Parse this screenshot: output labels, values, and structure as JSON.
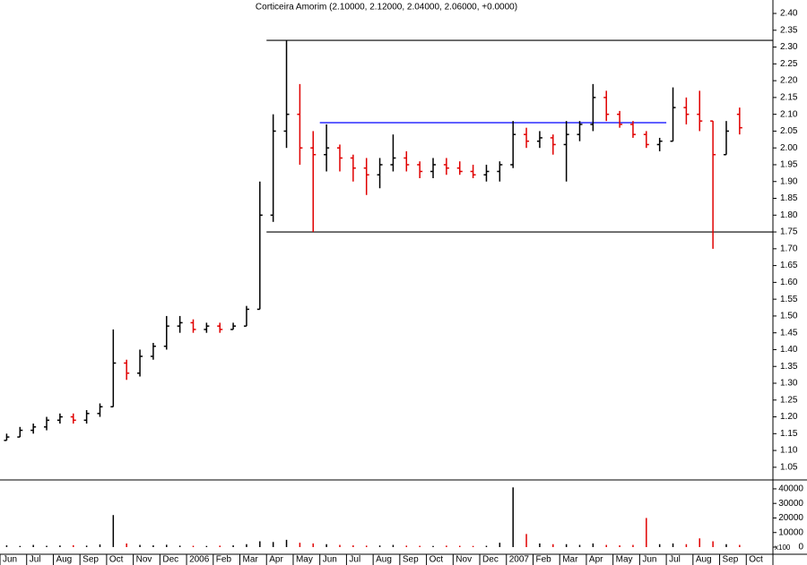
{
  "chart_data": {
    "type": "ohlc",
    "title": "Corticeira Amorim (2.10000, 2.12000, 2.04000, 2.06000, +0.0000)",
    "categories": [
      "Jun",
      null,
      "Jul",
      null,
      "Aug",
      null,
      "Sep",
      null,
      "Oct",
      null,
      "Nov",
      null,
      "Dec",
      null,
      "2006",
      null,
      "Feb",
      null,
      "Mar",
      null,
      "Apr",
      null,
      "May",
      null,
      "Jun",
      null,
      "Jul",
      null,
      "Aug",
      null,
      "Sep",
      null,
      "Oct",
      null,
      "Nov",
      null,
      "Dec",
      null,
      "2007",
      null,
      "Feb",
      null,
      "Mar",
      null,
      "Apr",
      null,
      "May",
      null,
      "Jun",
      null,
      "Jul",
      null,
      "Aug",
      null,
      "Sep",
      null,
      "Oct",
      null
    ],
    "open": [
      1.13,
      1.14,
      1.16,
      1.17,
      1.19,
      1.2,
      1.19,
      1.21,
      1.23,
      1.36,
      1.33,
      1.38,
      1.41,
      1.47,
      1.48,
      1.46,
      1.47,
      1.46,
      1.47,
      1.52,
      1.8,
      2.05,
      2.1,
      2.0,
      1.98,
      2.0,
      1.97,
      1.94,
      1.92,
      1.95,
      1.97,
      1.95,
      1.93,
      1.95,
      1.94,
      1.93,
      1.92,
      1.93,
      1.95,
      2.04,
      2.02,
      2.03,
      2.01,
      2.04,
      2.07,
      2.15,
      2.1,
      2.07,
      2.04,
      2.01,
      2.02,
      2.12,
      2.1,
      2.08,
      1.98,
      2.1,
      null,
      null
    ],
    "high": [
      1.15,
      1.17,
      1.18,
      1.2,
      1.21,
      1.21,
      1.22,
      1.24,
      1.46,
      1.37,
      1.4,
      1.42,
      1.5,
      1.5,
      1.49,
      1.48,
      1.48,
      1.48,
      1.53,
      1.9,
      2.1,
      2.32,
      2.19,
      2.05,
      2.07,
      2.01,
      1.98,
      1.97,
      1.97,
      2.04,
      1.99,
      1.96,
      1.97,
      1.97,
      1.96,
      1.95,
      1.95,
      1.96,
      2.08,
      2.06,
      2.05,
      2.04,
      2.08,
      2.08,
      2.19,
      2.17,
      2.11,
      2.08,
      2.05,
      2.03,
      2.18,
      2.15,
      2.17,
      2.08,
      2.08,
      2.12,
      null,
      null
    ],
    "low": [
      1.13,
      1.14,
      1.15,
      1.16,
      1.18,
      1.18,
      1.18,
      1.2,
      1.23,
      1.31,
      1.32,
      1.37,
      1.4,
      1.45,
      1.45,
      1.45,
      1.45,
      1.46,
      1.47,
      1.52,
      1.78,
      2.0,
      1.95,
      1.75,
      1.93,
      1.93,
      1.9,
      1.86,
      1.88,
      1.93,
      1.93,
      1.91,
      1.91,
      1.92,
      1.92,
      1.91,
      1.9,
      1.9,
      1.94,
      2.0,
      2.0,
      1.98,
      1.9,
      2.02,
      2.05,
      2.08,
      2.06,
      2.03,
      2.0,
      1.99,
      2.02,
      2.07,
      2.05,
      1.7,
      1.98,
      2.04,
      null,
      null
    ],
    "close": [
      1.14,
      1.16,
      1.17,
      1.19,
      1.2,
      1.19,
      1.21,
      1.23,
      1.36,
      1.33,
      1.38,
      1.41,
      1.47,
      1.48,
      1.46,
      1.47,
      1.46,
      1.47,
      1.52,
      1.8,
      2.05,
      2.1,
      2.0,
      1.98,
      2.0,
      1.97,
      1.94,
      1.92,
      1.95,
      1.97,
      1.95,
      1.93,
      1.95,
      1.94,
      1.93,
      1.92,
      1.93,
      1.95,
      2.04,
      2.02,
      2.03,
      2.01,
      2.04,
      2.07,
      2.15,
      2.1,
      2.07,
      2.04,
      2.01,
      2.02,
      2.12,
      2.1,
      2.08,
      1.98,
      2.05,
      2.06,
      null,
      null
    ],
    "volume": [
      1200,
      800,
      1500,
      900,
      1100,
      1300,
      1000,
      1800,
      22000,
      2500,
      1500,
      1200,
      1600,
      1000,
      900,
      800,
      1000,
      1200,
      2000,
      4000,
      3500,
      5000,
      3000,
      2500,
      2000,
      1500,
      1200,
      1000,
      1100,
      1500,
      1000,
      900,
      800,
      1000,
      900,
      800,
      900,
      3000,
      41000,
      9000,
      2500,
      2000,
      2000,
      1500,
      2500,
      1500,
      1200,
      1500,
      20000,
      2000,
      2500,
      2000,
      6000,
      4000,
      2000,
      1500,
      null,
      null
    ],
    "up_color": "#000000",
    "down_color": "#e00000",
    "ylim": [
      1.015,
      2.44
    ],
    "yticks": [
      {
        "value": 1.05,
        "label": "1.05"
      },
      {
        "value": 1.1,
        "label": "1.10"
      },
      {
        "value": 1.15,
        "label": "1.15"
      },
      {
        "value": 1.2,
        "label": "1.20"
      },
      {
        "value": 1.25,
        "label": "1.25"
      },
      {
        "value": 1.3,
        "label": "1.30"
      },
      {
        "value": 1.35,
        "label": "1.35"
      },
      {
        "value": 1.4,
        "label": "1.40"
      },
      {
        "value": 1.45,
        "label": "1.45"
      },
      {
        "value": 1.5,
        "label": "1.50"
      },
      {
        "value": 1.55,
        "label": "1.55"
      },
      {
        "value": 1.6,
        "label": "1.60"
      },
      {
        "value": 1.65,
        "label": "1.65"
      },
      {
        "value": 1.7,
        "label": "1.70"
      },
      {
        "value": 1.75,
        "label": "1.75"
      },
      {
        "value": 1.8,
        "label": "1.80"
      },
      {
        "value": 1.85,
        "label": "1.85"
      },
      {
        "value": 1.9,
        "label": "1.90"
      },
      {
        "value": 1.95,
        "label": "1.95"
      },
      {
        "value": 2.0,
        "label": "2.00"
      },
      {
        "value": 2.05,
        "label": "2.05"
      },
      {
        "value": 2.1,
        "label": "2.10"
      },
      {
        "value": 2.15,
        "label": "2.15"
      },
      {
        "value": 2.2,
        "label": "2.20"
      },
      {
        "value": 2.25,
        "label": "2.25"
      },
      {
        "value": 2.3,
        "label": "2.30"
      },
      {
        "value": 2.35,
        "label": "2.35"
      },
      {
        "value": 2.4,
        "label": "2.40"
      }
    ],
    "y2lim": [
      -4300,
      45500
    ],
    "y2ticks": [
      0,
      10000,
      20000,
      30000,
      40000
    ],
    "y2_unit_label": "x100",
    "hlines": [
      {
        "value": 2.32,
        "color": "#000000",
        "from": 20,
        "to": 57
      },
      {
        "value": 1.75,
        "color": "#000000",
        "from": 20,
        "to": 57
      },
      {
        "value": 2.075,
        "color": "#0000ff",
        "from": 24,
        "to": 49
      }
    ]
  }
}
